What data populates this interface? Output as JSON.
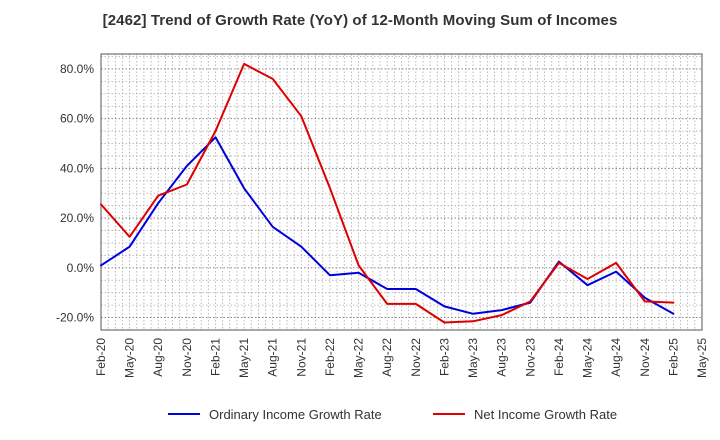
{
  "chart_data": {
    "type": "line",
    "title": "[2462]  Trend of Growth Rate (YoY) of 12-Month Moving Sum of Incomes",
    "xlabel": "",
    "ylabel": "",
    "x": [
      "Feb-20",
      "May-20",
      "Aug-20",
      "Nov-20",
      "Feb-21",
      "May-21",
      "Aug-21",
      "Nov-21",
      "Feb-22",
      "May-22",
      "Aug-22",
      "Nov-22",
      "Feb-23",
      "May-23",
      "Aug-23",
      "Nov-23",
      "Feb-24",
      "May-24",
      "Aug-24",
      "Nov-24",
      "Feb-25",
      "May-25"
    ],
    "y_ticks": [
      -20,
      0,
      20,
      40,
      60,
      80
    ],
    "y_tick_labels": [
      "-20.0%",
      "0.0%",
      "20.0%",
      "40.0%",
      "60.0%",
      "80.0%"
    ],
    "ylim": [
      -25,
      86
    ],
    "grid": true,
    "legend_position": "bottom",
    "series": [
      {
        "name": "Ordinary Income Growth Rate",
        "color": "#0000dd",
        "values": [
          1.0,
          8.5,
          26.0,
          41.0,
          52.5,
          32.0,
          16.5,
          8.5,
          -3.0,
          -2.0,
          -8.5,
          -8.5,
          -15.5,
          -18.5,
          -17.0,
          -14.0,
          2.5,
          -7.0,
          -1.5,
          -12.0,
          -18.5,
          null
        ]
      },
      {
        "name": "Net Income Growth Rate",
        "color": "#dd0000",
        "values": [
          25.5,
          12.5,
          29.0,
          33.5,
          55.0,
          82.0,
          76.0,
          61.0,
          32.0,
          1.0,
          -14.5,
          -14.5,
          -22.0,
          -21.5,
          -19.0,
          -13.5,
          2.0,
          -4.5,
          2.0,
          -13.5,
          -14.0,
          null
        ]
      }
    ]
  }
}
